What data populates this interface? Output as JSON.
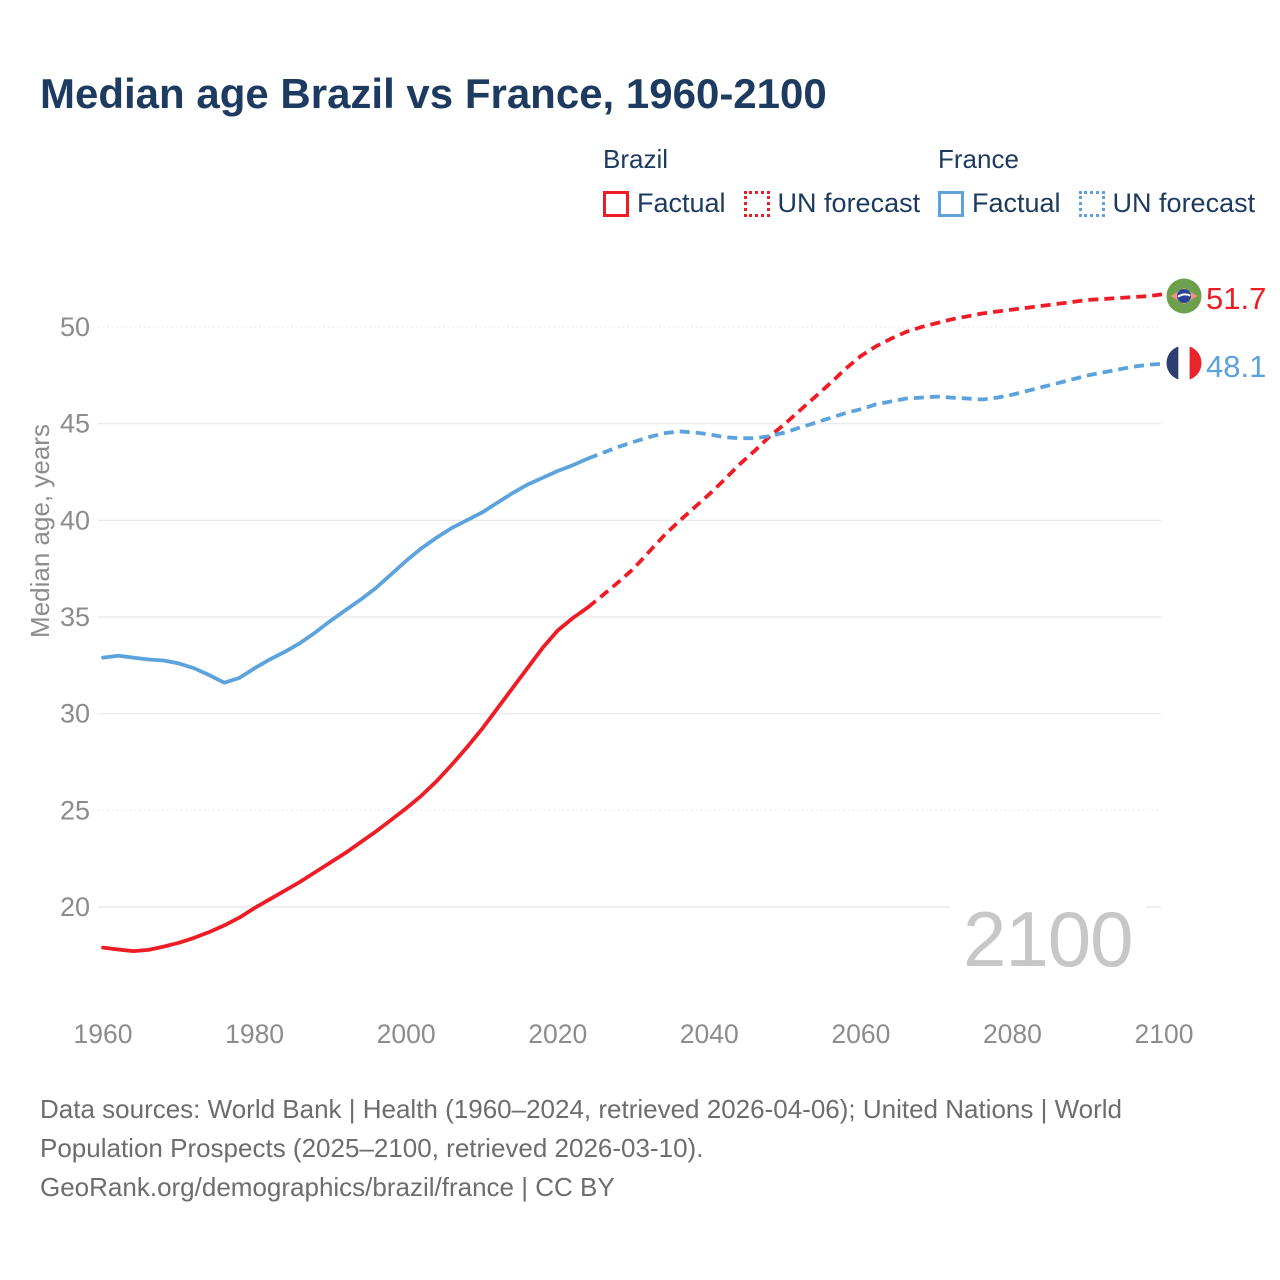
{
  "title": "Median age Brazil vs France, 1960-2100",
  "legend": {
    "groups": [
      {
        "name": "Brazil",
        "color": "#ee1c25",
        "items": [
          {
            "label": "Factual",
            "style": "solid"
          },
          {
            "label": "UN forecast",
            "style": "dotted"
          }
        ]
      },
      {
        "name": "France",
        "color": "#5ca3dd",
        "items": [
          {
            "label": "Factual",
            "style": "solid"
          },
          {
            "label": "UN forecast",
            "style": "dotted"
          }
        ]
      }
    ]
  },
  "end_labels": {
    "brazil": "51.7",
    "france": "48.1"
  },
  "watermark": "2100",
  "icons": {
    "brazil_flag": "brazil-flag-icon",
    "france_flag": "france-flag-icon"
  },
  "footer": {
    "line1": "Data sources: World Bank | Health (1960–2024, retrieved 2026-04-06); United Nations | World",
    "line2": "Population Prospects (2025–2100, retrieved 2026-03-10).",
    "line3": "GeoRank.org/demographics/brazil/france | CC BY"
  },
  "chart_data": {
    "type": "line",
    "title": "Median age Brazil vs France, 1960-2100",
    "xlabel": "",
    "ylabel": "Median age, years",
    "x_ticks": [
      1960,
      1980,
      2000,
      2020,
      2040,
      2060,
      2080,
      2100
    ],
    "y_ticks": [
      20,
      25,
      30,
      35,
      40,
      45,
      50
    ],
    "dotted_gridlines": [
      25,
      50
    ],
    "xlim": [
      1960,
      2100
    ],
    "ylim": [
      17.5,
      52
    ],
    "grid": true,
    "legend_position": "top-right",
    "colors": {
      "grid": "#e8e8e8",
      "axis_text": "#8c8c8c",
      "watermark": "#c7c7c7"
    },
    "series": [
      {
        "name": "Brazil factual",
        "color": "#ee1c25",
        "dash": false,
        "points": [
          [
            1960,
            17.9
          ],
          [
            1962,
            17.8
          ],
          [
            1964,
            17.72
          ],
          [
            1966,
            17.78
          ],
          [
            1968,
            17.95
          ],
          [
            1970,
            18.15
          ],
          [
            1972,
            18.4
          ],
          [
            1974,
            18.7
          ],
          [
            1976,
            19.05
          ],
          [
            1978,
            19.45
          ],
          [
            1980,
            19.95
          ],
          [
            1982,
            20.4
          ],
          [
            1984,
            20.85
          ],
          [
            1986,
            21.3
          ],
          [
            1988,
            21.8
          ],
          [
            1990,
            22.3
          ],
          [
            1992,
            22.8
          ],
          [
            1994,
            23.35
          ],
          [
            1996,
            23.9
          ],
          [
            1998,
            24.5
          ],
          [
            2000,
            25.1
          ],
          [
            2002,
            25.75
          ],
          [
            2004,
            26.5
          ],
          [
            2006,
            27.35
          ],
          [
            2008,
            28.25
          ],
          [
            2010,
            29.2
          ],
          [
            2012,
            30.25
          ],
          [
            2014,
            31.3
          ],
          [
            2016,
            32.35
          ],
          [
            2018,
            33.4
          ],
          [
            2020,
            34.3
          ],
          [
            2022,
            34.95
          ],
          [
            2024,
            35.5
          ]
        ]
      },
      {
        "name": "Brazil UN forecast",
        "color": "#ee1c25",
        "dash": true,
        "points": [
          [
            2024,
            35.5
          ],
          [
            2026,
            36.15
          ],
          [
            2028,
            36.8
          ],
          [
            2030,
            37.5
          ],
          [
            2032,
            38.35
          ],
          [
            2034,
            39.2
          ],
          [
            2036,
            39.95
          ],
          [
            2038,
            40.65
          ],
          [
            2040,
            41.35
          ],
          [
            2042,
            42.1
          ],
          [
            2044,
            42.9
          ],
          [
            2046,
            43.6
          ],
          [
            2048,
            44.35
          ],
          [
            2050,
            45.0
          ],
          [
            2052,
            45.7
          ],
          [
            2054,
            46.4
          ],
          [
            2056,
            47.1
          ],
          [
            2058,
            47.85
          ],
          [
            2060,
            48.5
          ],
          [
            2062,
            49.0
          ],
          [
            2064,
            49.4
          ],
          [
            2066,
            49.75
          ],
          [
            2068,
            50.0
          ],
          [
            2070,
            50.2
          ],
          [
            2072,
            50.4
          ],
          [
            2074,
            50.55
          ],
          [
            2076,
            50.7
          ],
          [
            2078,
            50.8
          ],
          [
            2080,
            50.9
          ],
          [
            2082,
            51.0
          ],
          [
            2084,
            51.1
          ],
          [
            2086,
            51.2
          ],
          [
            2088,
            51.3
          ],
          [
            2090,
            51.4
          ],
          [
            2092,
            51.45
          ],
          [
            2094,
            51.5
          ],
          [
            2096,
            51.55
          ],
          [
            2098,
            51.6
          ],
          [
            2100,
            51.7
          ]
        ]
      },
      {
        "name": "France factual",
        "color": "#5ca3dd",
        "dash": false,
        "points": [
          [
            1960,
            32.9
          ],
          [
            1962,
            33.0
          ],
          [
            1964,
            32.9
          ],
          [
            1966,
            32.8
          ],
          [
            1968,
            32.75
          ],
          [
            1970,
            32.6
          ],
          [
            1972,
            32.35
          ],
          [
            1974,
            32.0
          ],
          [
            1976,
            31.6
          ],
          [
            1978,
            31.85
          ],
          [
            1980,
            32.35
          ],
          [
            1982,
            32.8
          ],
          [
            1984,
            33.2
          ],
          [
            1986,
            33.65
          ],
          [
            1988,
            34.2
          ],
          [
            1990,
            34.8
          ],
          [
            1992,
            35.35
          ],
          [
            1994,
            35.9
          ],
          [
            1996,
            36.5
          ],
          [
            1998,
            37.2
          ],
          [
            2000,
            37.9
          ],
          [
            2002,
            38.55
          ],
          [
            2004,
            39.1
          ],
          [
            2006,
            39.6
          ],
          [
            2008,
            40.0
          ],
          [
            2010,
            40.4
          ],
          [
            2012,
            40.9
          ],
          [
            2014,
            41.4
          ],
          [
            2016,
            41.85
          ],
          [
            2018,
            42.2
          ],
          [
            2020,
            42.55
          ],
          [
            2022,
            42.85
          ],
          [
            2024,
            43.2
          ]
        ]
      },
      {
        "name": "France UN forecast",
        "color": "#5ca3dd",
        "dash": true,
        "points": [
          [
            2024,
            43.2
          ],
          [
            2026,
            43.5
          ],
          [
            2028,
            43.8
          ],
          [
            2030,
            44.05
          ],
          [
            2032,
            44.3
          ],
          [
            2034,
            44.5
          ],
          [
            2036,
            44.6
          ],
          [
            2038,
            44.55
          ],
          [
            2040,
            44.45
          ],
          [
            2042,
            44.3
          ],
          [
            2044,
            44.25
          ],
          [
            2046,
            44.25
          ],
          [
            2048,
            44.35
          ],
          [
            2050,
            44.55
          ],
          [
            2052,
            44.8
          ],
          [
            2054,
            45.05
          ],
          [
            2056,
            45.3
          ],
          [
            2058,
            45.55
          ],
          [
            2060,
            45.75
          ],
          [
            2062,
            46.0
          ],
          [
            2064,
            46.15
          ],
          [
            2066,
            46.3
          ],
          [
            2068,
            46.35
          ],
          [
            2070,
            46.4
          ],
          [
            2072,
            46.35
          ],
          [
            2074,
            46.3
          ],
          [
            2076,
            46.25
          ],
          [
            2078,
            46.35
          ],
          [
            2080,
            46.5
          ],
          [
            2082,
            46.7
          ],
          [
            2084,
            46.9
          ],
          [
            2086,
            47.1
          ],
          [
            2088,
            47.3
          ],
          [
            2090,
            47.5
          ],
          [
            2092,
            47.65
          ],
          [
            2094,
            47.8
          ],
          [
            2096,
            47.95
          ],
          [
            2098,
            48.05
          ],
          [
            2100,
            48.1
          ]
        ]
      }
    ]
  }
}
